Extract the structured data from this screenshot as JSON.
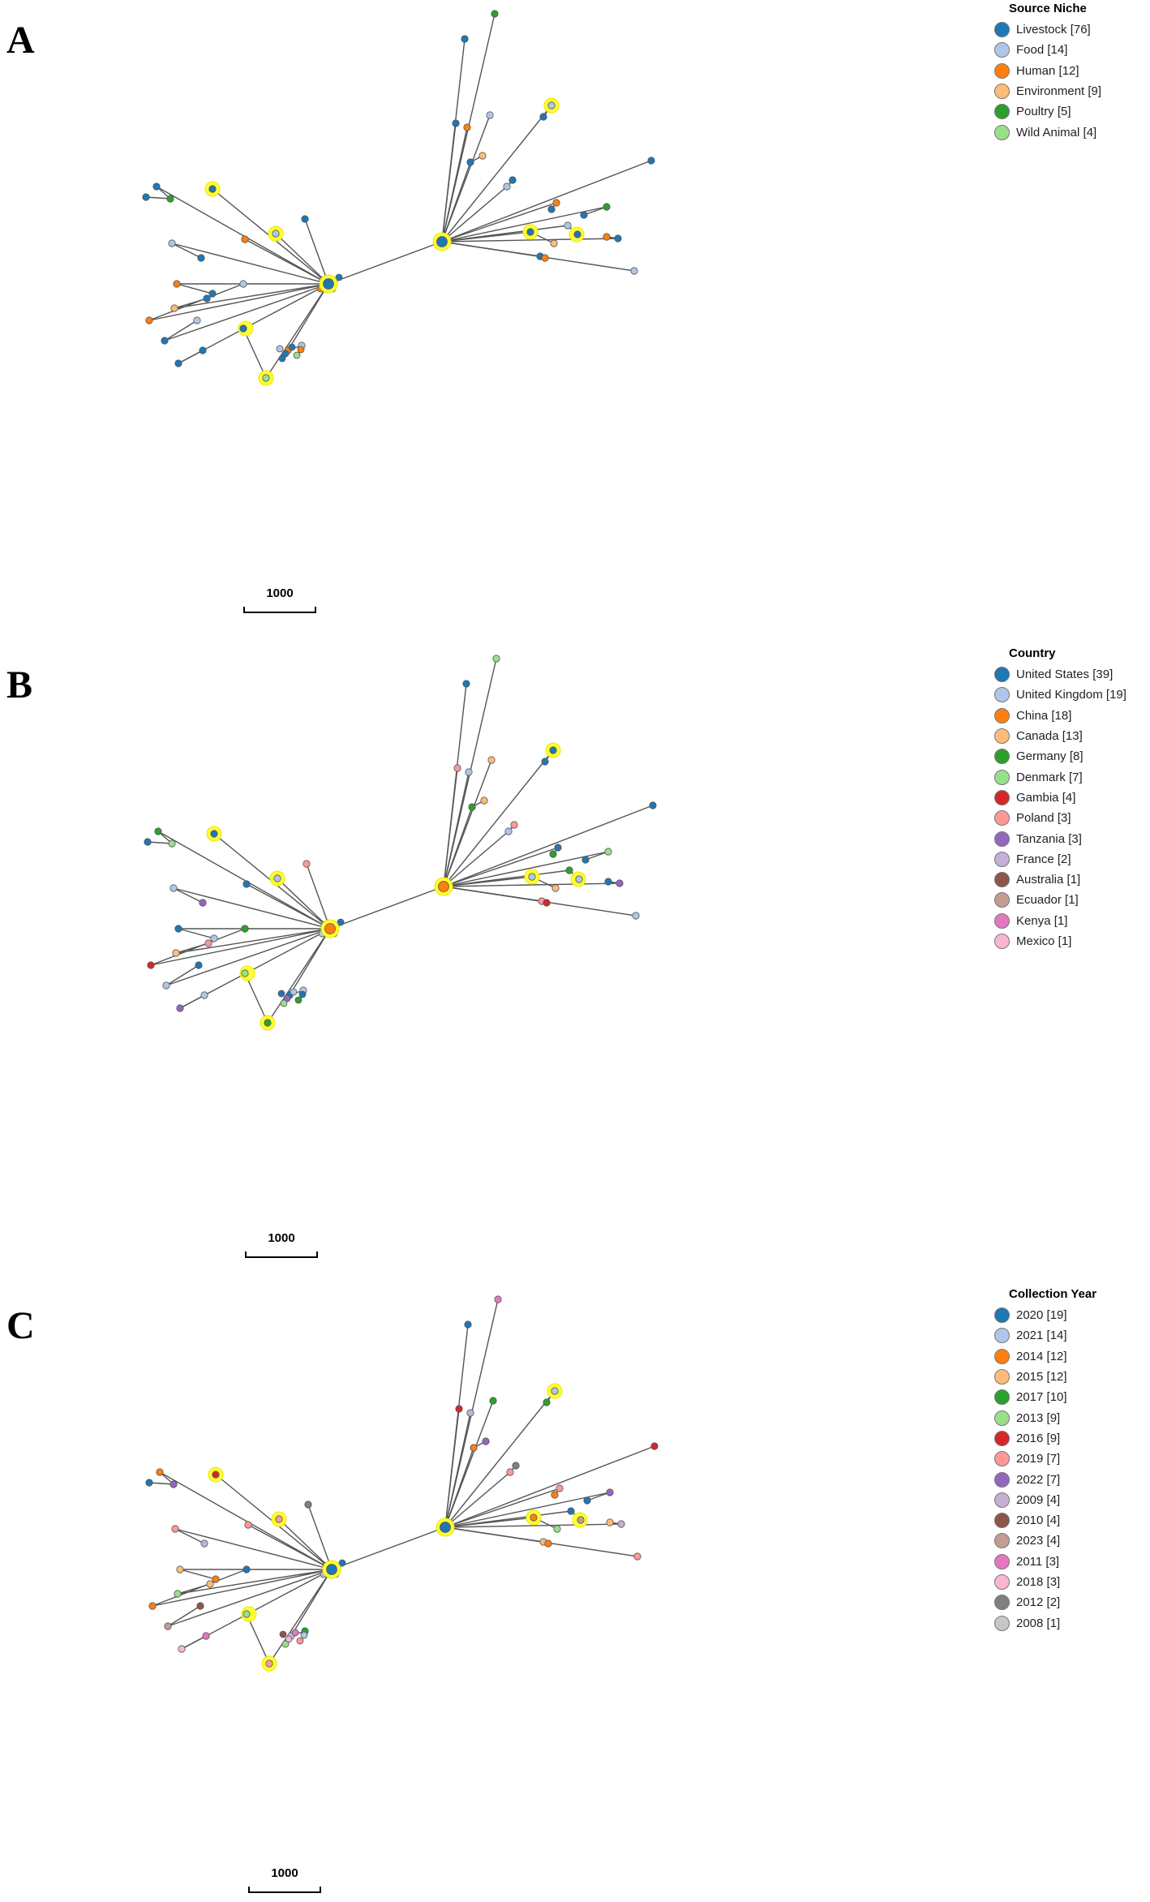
{
  "panels": [
    {
      "letter": "A",
      "legend_title": "Source Niche",
      "legend": [
        {
          "label": "Livestock [76]",
          "color": "#1f77b4"
        },
        {
          "label": "Food [14]",
          "color": "#aec7e8"
        },
        {
          "label": "Human [12]",
          "color": "#ff7f0e"
        },
        {
          "label": "Environment [9]",
          "color": "#ffbb78"
        },
        {
          "label": "Poultry [5]",
          "color": "#2ca02c"
        },
        {
          "label": "Wild Animal [4]",
          "color": "#98df8a"
        }
      ],
      "scale_label": "1000",
      "leaf_colors": [
        "#1f77b4",
        "#aec7e8",
        "#1f77b4",
        "#ff7f0e",
        "#1f77b4",
        "#2ca02c",
        "#1f77b4",
        "#aec7e8",
        "#1f77b4",
        "#ff7f0e",
        "#1f77b4",
        "#ffbb78",
        "#1f77b4",
        "#ff7f0e",
        "#aec7e8",
        "#1f77b4",
        "#aec7e8",
        "#1f77b4",
        "#1f77b4",
        "#98df8a",
        "#1f77b4",
        "#ff7f0e",
        "#aec7e8",
        "#2ca02c",
        "#1f77b4",
        "#1f77b4",
        "#ff7f0e",
        "#aec7e8",
        "#1f77b4",
        "#ffbb78",
        "#aec7e8",
        "#1f77b4"
      ],
      "hub_fill": "#1f77b4"
    },
    {
      "letter": "B",
      "legend_title": "Country",
      "legend": [
        {
          "label": "United States [39]",
          "color": "#1f77b4"
        },
        {
          "label": "United Kingdom [19]",
          "color": "#aec7e8"
        },
        {
          "label": "China [18]",
          "color": "#ff7f0e"
        },
        {
          "label": "Canada [13]",
          "color": "#ffbb78"
        },
        {
          "label": "Germany [8]",
          "color": "#2ca02c"
        },
        {
          "label": "Denmark [7]",
          "color": "#98df8a"
        },
        {
          "label": "Gambia [4]",
          "color": "#d62728"
        },
        {
          "label": "Poland [3]",
          "color": "#ff9896"
        },
        {
          "label": "Tanzania [3]",
          "color": "#9467bd"
        },
        {
          "label": "France [2]",
          "color": "#c5b0d5"
        },
        {
          "label": "Australia [1]",
          "color": "#8c564b"
        },
        {
          "label": "Ecuador [1]",
          "color": "#c49c94"
        },
        {
          "label": "Kenya [1]",
          "color": "#e377c2"
        },
        {
          "label": "Mexico [1]",
          "color": "#f7b6d2"
        }
      ],
      "scale_label": "1000",
      "leaf_colors": [
        "#1f77b4",
        "#aec7e8",
        "#ff9896",
        "#1f77b4",
        "#2ca02c",
        "#98df8a",
        "#1f77b4",
        "#aec7e8",
        "#9467bd",
        "#1f77b4",
        "#aec7e8",
        "#ffbb78",
        "#ff9896",
        "#d62728",
        "#2ca02c",
        "#aec7e8",
        "#1f77b4",
        "#9467bd",
        "#aec7e8",
        "#2ca02c",
        "#98df8a",
        "#1f77b4",
        "#aec7e8",
        "#98df8a",
        "#1f77b4",
        "#ff9896",
        "#aec7e8",
        "#ffbb78",
        "#2ca02c",
        "#ffbb78",
        "#1f77b4",
        "#1f77b4"
      ],
      "hub_fill": "#ff7f0e"
    },
    {
      "letter": "C",
      "legend_title": "Collection Year",
      "legend": [
        {
          "label": "2020 [19]",
          "color": "#1f77b4"
        },
        {
          "label": "2021 [14]",
          "color": "#aec7e8"
        },
        {
          "label": "2014 [12]",
          "color": "#ff7f0e"
        },
        {
          "label": "2015 [12]",
          "color": "#ffbb78"
        },
        {
          "label": "2017 [10]",
          "color": "#2ca02c"
        },
        {
          "label": "2013 [9]",
          "color": "#98df8a"
        },
        {
          "label": "2016 [9]",
          "color": "#d62728"
        },
        {
          "label": "2019 [7]",
          "color": "#ff9896"
        },
        {
          "label": "2022 [7]",
          "color": "#9467bd"
        },
        {
          "label": "2009 [4]",
          "color": "#c5b0d5"
        },
        {
          "label": "2010 [4]",
          "color": "#8c564b"
        },
        {
          "label": "2023 [4]",
          "color": "#c49c94"
        },
        {
          "label": "2011 [3]",
          "color": "#e377c2"
        },
        {
          "label": "2018 [3]",
          "color": "#f7b6d2"
        },
        {
          "label": "2012 [2]",
          "color": "#7f7f7f"
        },
        {
          "label": "2008 [1]",
          "color": "#c7c7c7"
        }
      ],
      "scale_label": "1000",
      "leaf_colors": [
        "#d62728",
        "#ff9896",
        "#7f7f7f",
        "#ff9896",
        "#ff7f0e",
        "#9467bd",
        "#1f77b4",
        "#ff9896",
        "#c5b0d5",
        "#ffbb78",
        "#ff7f0e",
        "#98df8a",
        "#ffbb78",
        "#ff7f0e",
        "#1f77b4",
        "#c49c94",
        "#8c564b",
        "#f7b6d2",
        "#e377c2",
        "#ff9896",
        "#98df8a",
        "#aec7e8",
        "#2ca02c",
        "#e377c2",
        "#1f77b4",
        "#d62728",
        "#c5b0d5",
        "#2ca02c",
        "#ff7f0e",
        "#9467bd",
        "#aec7e8",
        "#2ca02c"
      ],
      "hub_fill": "#1f77b4"
    }
  ]
}
